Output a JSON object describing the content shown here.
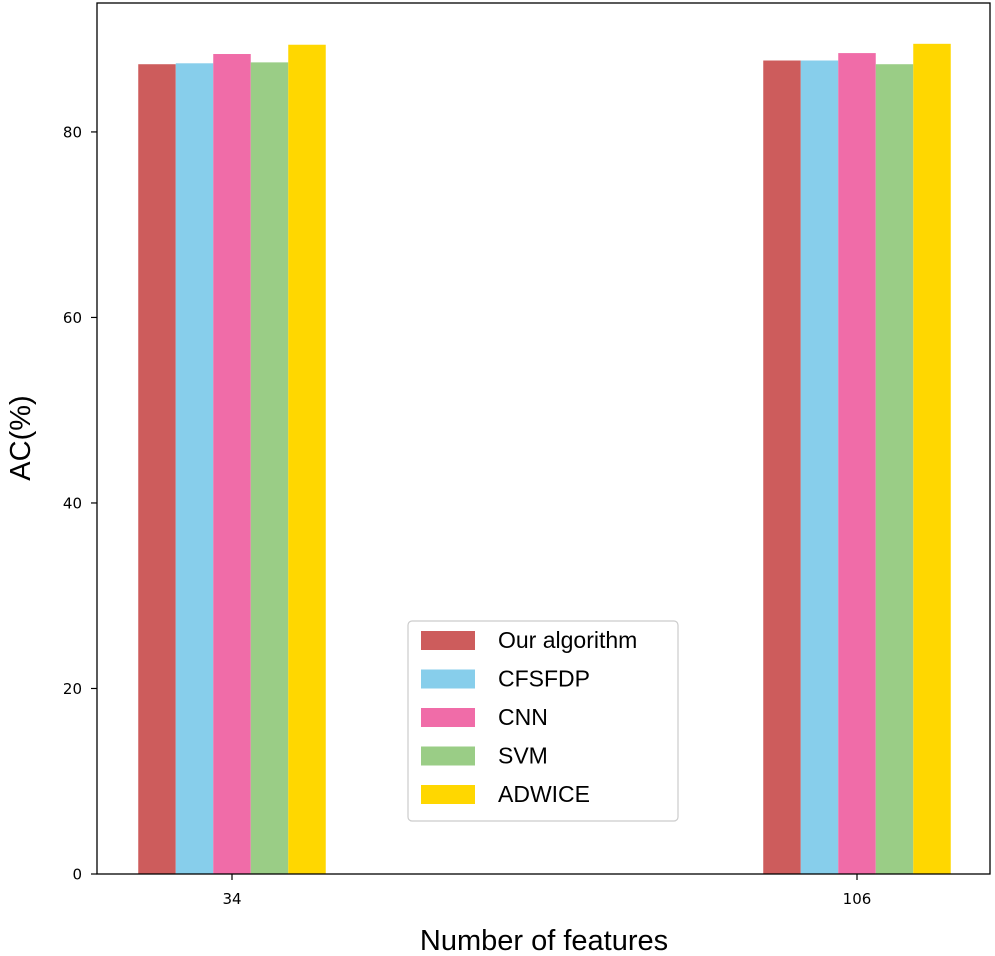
{
  "chart_data": {
    "type": "bar",
    "title": "",
    "xlabel": "Number of features",
    "ylabel": "AC(%)",
    "categories": [
      "34",
      "106"
    ],
    "series": [
      {
        "name": "Our algorithm",
        "color": "#cd5c5c",
        "values": [
          87.3,
          87.7
        ]
      },
      {
        "name": "CFSFDP",
        "color": "#87ceeb",
        "values": [
          87.4,
          87.7
        ]
      },
      {
        "name": "CNN",
        "color": "#f06ca8",
        "values": [
          88.4,
          88.5
        ]
      },
      {
        "name": "SVM",
        "color": "#9acd86",
        "values": [
          87.5,
          87.3
        ]
      },
      {
        "name": "ADWICE",
        "color": "#ffd700",
        "values": [
          89.4,
          89.5
        ]
      }
    ],
    "ylim": [
      0,
      93.9
    ],
    "yticks": [
      0,
      20,
      40,
      60,
      80
    ],
    "grid": false,
    "legend_position": "lower center"
  }
}
